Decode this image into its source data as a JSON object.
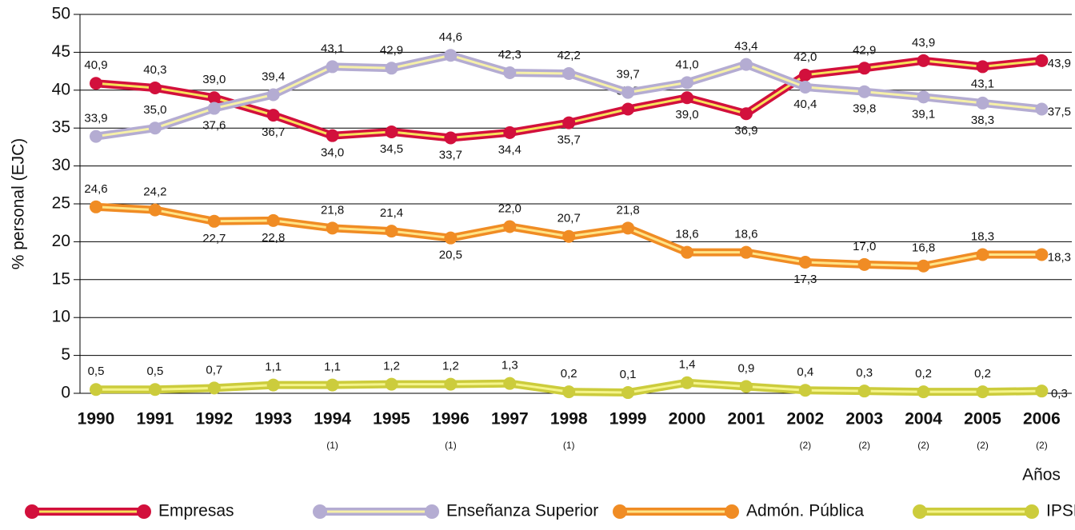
{
  "chart_data": {
    "type": "line",
    "y_label": "% personal (EJC)",
    "x_label": "Años",
    "categories": [
      "1990",
      "1991",
      "1992",
      "1993",
      "1994",
      "1995",
      "1996",
      "1997",
      "1998",
      "1999",
      "2000",
      "2001",
      "2002",
      "2003",
      "2004",
      "2005",
      "2006"
    ],
    "category_notes": [
      null,
      null,
      null,
      null,
      "(1)",
      null,
      "(1)",
      null,
      "(1)",
      null,
      null,
      null,
      "(2)",
      "(2)",
      "(2)",
      "(2)",
      "(2)"
    ],
    "ylim": [
      0,
      50
    ],
    "yticks": [
      0,
      5,
      10,
      15,
      20,
      25,
      30,
      35,
      40,
      45,
      50
    ],
    "grid": true,
    "legend": "bottom",
    "series": [
      {
        "name": "Empresas",
        "color": "#d2103c",
        "inner_color": "#f7e15a",
        "values": [
          40.9,
          40.3,
          39.0,
          36.7,
          34.0,
          34.5,
          33.7,
          34.4,
          35.7,
          37.5,
          39.0,
          36.9,
          42.0,
          42.9,
          43.9,
          43.1,
          43.9
        ],
        "value_labels": [
          "40,9",
          "40,3",
          "39,0",
          "36,7",
          "34,0",
          "34,5",
          "33,7",
          "34,4",
          "35,7",
          "37,5",
          "39,0",
          "36,9",
          "42,0",
          "42,9",
          "43,9",
          "43,1",
          "43,9"
        ]
      },
      {
        "name": "Enseñanza Superior",
        "color": "#b4acd2",
        "inner_color": "#f6f0a8",
        "values": [
          33.9,
          35.0,
          37.6,
          39.4,
          43.1,
          42.9,
          44.6,
          42.3,
          42.2,
          39.7,
          41.0,
          43.4,
          40.4,
          39.8,
          39.1,
          38.3,
          37.5
        ],
        "value_labels": [
          "33,9",
          "35,0",
          "37,6",
          "39,4",
          "43,1",
          "42,9",
          "44,6",
          "42,3",
          "42,2",
          "39,7",
          "41,0",
          "43,4",
          "40,4",
          "39,8",
          "39,1",
          "38,3",
          "37,5"
        ]
      },
      {
        "name": "Admón. Pública",
        "color": "#f08c24",
        "inner_color": "#ffe486",
        "values": [
          24.6,
          24.2,
          22.7,
          22.8,
          21.8,
          21.4,
          20.5,
          22.0,
          20.7,
          21.8,
          18.6,
          18.6,
          17.3,
          17.0,
          16.8,
          18.3,
          18.3
        ],
        "value_labels": [
          "24,6",
          "24,2",
          "22,7",
          "22,8",
          "21,8",
          "21,4",
          "20,5",
          "22,0",
          "20,7",
          "21,8",
          "18,6",
          "18,6",
          "17,3",
          "17,0",
          "16,8",
          "18,3",
          "18,3"
        ]
      },
      {
        "name": "IPSFL",
        "color": "#cccc3c",
        "inner_color": "#f4f48a",
        "values": [
          0.5,
          0.5,
          0.7,
          1.1,
          1.1,
          1.2,
          1.2,
          1.3,
          0.2,
          0.1,
          1.4,
          0.9,
          0.4,
          0.3,
          0.2,
          0.2,
          0.3
        ],
        "value_labels": [
          "0,5",
          "0,5",
          "0,7",
          "1,1",
          "1,1",
          "1,2",
          "1,2",
          "1,3",
          "0,2",
          "0,1",
          "1,4",
          "0,9",
          "0,4",
          "0,3",
          "0,2",
          "0,2",
          "0,3"
        ]
      }
    ]
  }
}
